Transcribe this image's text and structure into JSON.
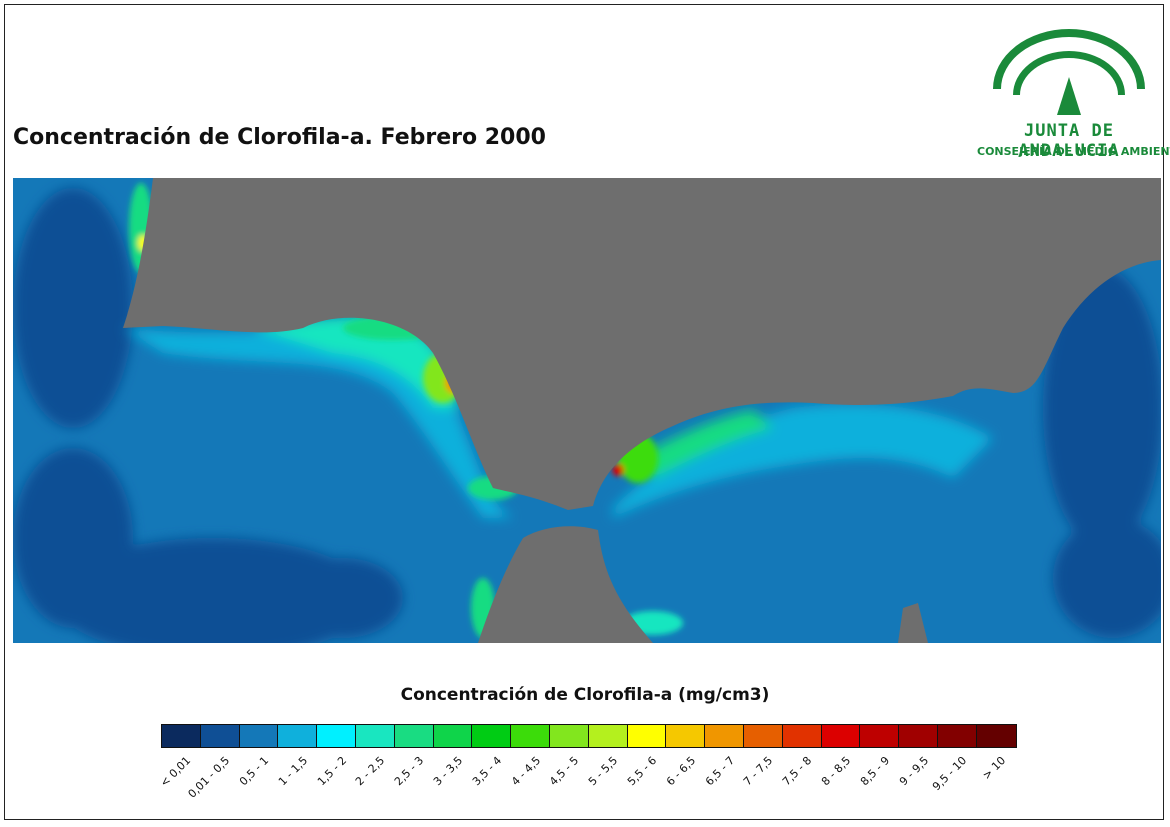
{
  "title": "Concentración de Clorofila-a. Febrero 2000",
  "logo": {
    "name": "JUNTA DE ANDALUCIA",
    "department": "CONSEJERÍA DE MEDIO AMBIENTE",
    "color": "#1a8a3a"
  },
  "map": {
    "land_color": "#6e6e6e",
    "description_colors": {
      "ocean_base": "#1f6fae"
    }
  },
  "legend": {
    "title": "Concentración de Clorofila-a (mg/cm3)",
    "classes": [
      {
        "label": "< 0,01",
        "color": "#0b2a5e"
      },
      {
        "label": "0,01 - 0,5",
        "color": "#0f4f95"
      },
      {
        "label": "0,5 - 1",
        "color": "#1478b8"
      },
      {
        "label": "1 - 1,5",
        "color": "#0fb0dc"
      },
      {
        "label": "1,5 - 2",
        "color": "#00f0ff"
      },
      {
        "label": "2 - 2,5",
        "color": "#19e6c0"
      },
      {
        "label": "2,5 - 3",
        "color": "#19dc82"
      },
      {
        "label": "3 - 3,5",
        "color": "#0fd44a"
      },
      {
        "label": "3,5 - 4",
        "color": "#00cc14"
      },
      {
        "label": "4 - 4,5",
        "color": "#3cdc0a"
      },
      {
        "label": "4,5 - 5",
        "color": "#82e61e"
      },
      {
        "label": "5 - 5,5",
        "color": "#b4f01e"
      },
      {
        "label": "5,5 - 6",
        "color": "#ffff00"
      },
      {
        "label": "6 - 6,5",
        "color": "#f5c800"
      },
      {
        "label": "6,5 - 7",
        "color": "#f09600"
      },
      {
        "label": "7 - 7,5",
        "color": "#e65f00"
      },
      {
        "label": "7,5 - 8",
        "color": "#e13200"
      },
      {
        "label": "8 - 8,5",
        "color": "#dc0000"
      },
      {
        "label": "8,5 - 9",
        "color": "#be0000"
      },
      {
        "label": "9 - 9,5",
        "color": "#a00000"
      },
      {
        "label": "9,5 - 10",
        "color": "#820000"
      },
      {
        "label": "> 10",
        "color": "#640000"
      }
    ]
  }
}
